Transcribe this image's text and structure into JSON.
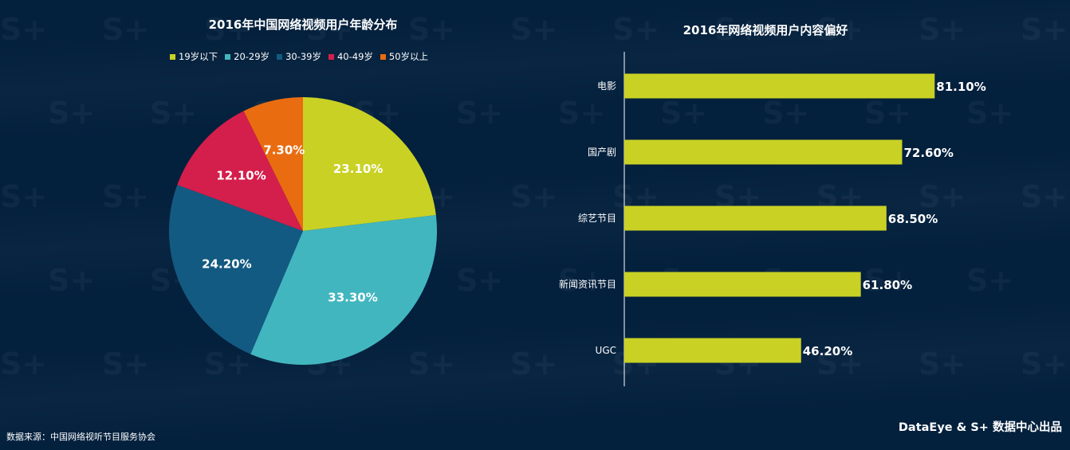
{
  "chart_data": [
    {
      "type": "pie",
      "title": "2016年中国网络视频用户年龄分布",
      "legend_position": "top",
      "categories": [
        "19岁以下",
        "20-29岁",
        "30-39岁",
        "40-49岁",
        "50岁以上"
      ],
      "values": [
        23.1,
        33.3,
        24.2,
        12.1,
        7.3
      ],
      "labels": [
        "23.10%",
        "33.30%",
        "24.20%",
        "12.10%",
        "7.30%"
      ],
      "colors": [
        "#c9d124",
        "#42b6bf",
        "#135a82",
        "#d41e4b",
        "#e96c11"
      ]
    },
    {
      "type": "bar",
      "orientation": "horizontal",
      "title": "2016年网络视频用户内容偏好",
      "categories": [
        "电影",
        "国产剧",
        "综艺节目",
        "新闻资讯节目",
        "UGC"
      ],
      "values": [
        81.1,
        72.6,
        68.5,
        61.8,
        46.2
      ],
      "labels": [
        "81.10%",
        "72.60%",
        "68.50%",
        "61.80%",
        "46.20%"
      ],
      "xlim": [
        0,
        100
      ],
      "bar_color": "#c9d124"
    }
  ],
  "footer": {
    "source": "数据来源：中国网络视听节目服务协会",
    "credit": "DataEye & S+ 数据中心出品"
  },
  "watermark_text": "S+"
}
